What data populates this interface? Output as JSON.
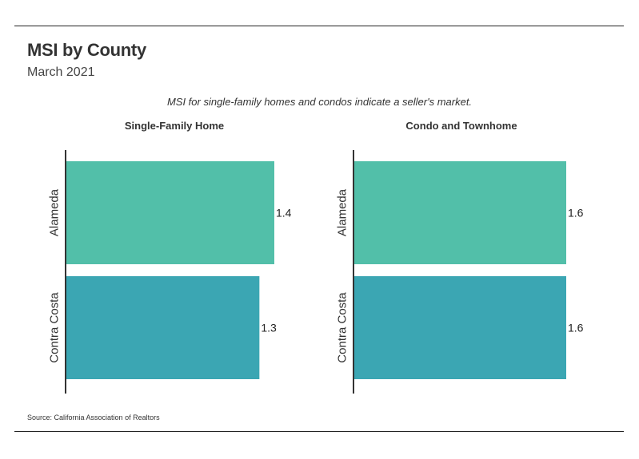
{
  "header": {
    "title": "MSI by County",
    "subtitle": "March 2021",
    "note": "MSI for single-family homes and condos indicate a seller's market."
  },
  "footer": {
    "source": "Source:  California Association of Realtors"
  },
  "colors": {
    "alameda": "#52bfa9",
    "contra_costa": "#3ba6b3",
    "axis": "#333333"
  },
  "chart_data": [
    {
      "type": "bar",
      "orientation": "horizontal",
      "title": "Single-Family Home",
      "categories": [
        "Alameda",
        "Contra Costa"
      ],
      "values": [
        1.4,
        1.3
      ],
      "value_labels": [
        "1.4",
        "1.3"
      ],
      "xlim": [
        0,
        1.4
      ],
      "grid": false
    },
    {
      "type": "bar",
      "orientation": "horizontal",
      "title": "Condo and Townhome",
      "categories": [
        "Alameda",
        "Contra Costa"
      ],
      "values": [
        1.6,
        1.6
      ],
      "value_labels": [
        "1.6",
        "1.6"
      ],
      "xlim": [
        0,
        1.6
      ],
      "grid": false
    }
  ]
}
